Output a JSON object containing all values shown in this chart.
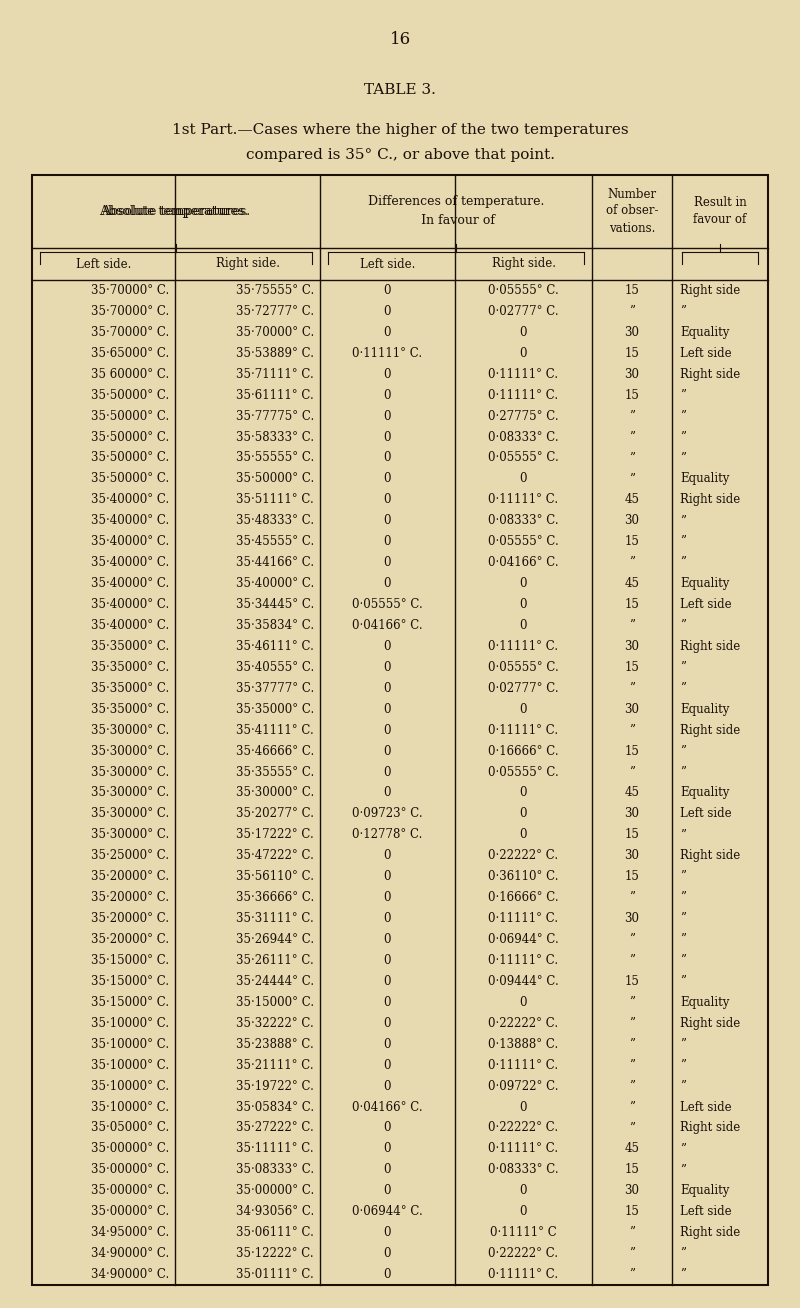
{
  "page_number": "16",
  "table_title": "Table 3.",
  "subtitle_line1": "1st Part.—Cases where the higher of the two temperatures",
  "subtitle_line2": "compared is 35° C., or above that point.",
  "bg_color": "#e8dab0",
  "text_color": "#1a1008",
  "rows": [
    [
      "35·70000° C.",
      "35·75555° C.",
      "0",
      "0·05555° C.",
      "15",
      "Right side"
    ],
    [
      "35·70000° C.",
      "35·72777° C.",
      "0",
      "0·02777° C.",
      "”",
      "”"
    ],
    [
      "35·70000° C.",
      "35·70000° C.",
      "0",
      "0",
      "30",
      "Equality"
    ],
    [
      "35·65000° C.",
      "35·53889° C.",
      "0·11111° C.",
      "0",
      "15",
      "Left side"
    ],
    [
      "35 60000° C.",
      "35·71111° C.",
      "0",
      "0·11111° C.",
      "30",
      "Right side"
    ],
    [
      "35·50000° C.",
      "35·61111° C.",
      "0",
      "0·11111° C.",
      "15",
      "”"
    ],
    [
      "35·50000° C.",
      "35·77775° C.",
      "0",
      "0·27775° C.",
      "”",
      "”"
    ],
    [
      "35·50000° C.",
      "35·58333° C.",
      "0",
      "0·08333° C.",
      "”",
      "”"
    ],
    [
      "35·50000° C.",
      "35·55555° C.",
      "0",
      "0·05555° C.",
      "”",
      "”"
    ],
    [
      "35·50000° C.",
      "35·50000° C.",
      "0",
      "0",
      "”",
      "Equality"
    ],
    [
      "35·40000° C.",
      "35·51111° C.",
      "0",
      "0·11111° C.",
      "45",
      "Right side"
    ],
    [
      "35·40000° C.",
      "35·48333° C.",
      "0",
      "0·08333° C.",
      "30",
      "”"
    ],
    [
      "35·40000° C.",
      "35·45555° C.",
      "0",
      "0·05555° C.",
      "15",
      "”"
    ],
    [
      "35·40000° C.",
      "35·44166° C.",
      "0",
      "0·04166° C.",
      "”",
      "”"
    ],
    [
      "35·40000° C.",
      "35·40000° C.",
      "0",
      "0",
      "45",
      "Equality"
    ],
    [
      "35·40000° C.",
      "35·34445° C.",
      "0·05555° C.",
      "0",
      "15",
      "Left side"
    ],
    [
      "35·40000° C.",
      "35·35834° C.",
      "0·04166° C.",
      "0",
      "”",
      "”"
    ],
    [
      "35·35000° C.",
      "35·46111° C.",
      "0",
      "0·11111° C.",
      "30",
      "Right side"
    ],
    [
      "35·35000° C.",
      "35·40555° C.",
      "0",
      "0·05555° C.",
      "15",
      "”"
    ],
    [
      "35·35000° C.",
      "35·37777° C.",
      "0",
      "0·02777° C.",
      "”",
      "”"
    ],
    [
      "35·35000° C.",
      "35·35000° C.",
      "0",
      "0",
      "30",
      "Equality"
    ],
    [
      "35·30000° C.",
      "35·41111° C.",
      "0",
      "0·11111° C.",
      "”",
      "Right side"
    ],
    [
      "35·30000° C.",
      "35·46666° C.",
      "0",
      "0·16666° C.",
      "15",
      "”"
    ],
    [
      "35·30000° C.",
      "35·35555° C.",
      "0",
      "0·05555° C.",
      "”",
      "”"
    ],
    [
      "35·30000° C.",
      "35·30000° C.",
      "0",
      "0",
      "45",
      "Equality"
    ],
    [
      "35·30000° C.",
      "35·20277° C.",
      "0·09723° C.",
      "0",
      "30",
      "Left side"
    ],
    [
      "35·30000° C.",
      "35·17222° C.",
      "0·12778° C.",
      "0",
      "15",
      "”"
    ],
    [
      "35·25000° C.",
      "35·47222° C.",
      "0",
      "0·22222° C.",
      "30",
      "Right side"
    ],
    [
      "35·20000° C.",
      "35·56110° C.",
      "0",
      "0·36110° C.",
      "15",
      "”"
    ],
    [
      "35·20000° C.",
      "35·36666° C.",
      "0",
      "0·16666° C.",
      "”",
      "”"
    ],
    [
      "35·20000° C.",
      "35·31111° C.",
      "0",
      "0·11111° C.",
      "30",
      "”"
    ],
    [
      "35·20000° C.",
      "35·26944° C.",
      "0",
      "0·06944° C.",
      "”",
      "”"
    ],
    [
      "35·15000° C.",
      "35·26111° C.",
      "0",
      "0·11111° C.",
      "”",
      "”"
    ],
    [
      "35·15000° C.",
      "35·24444° C.",
      "0",
      "0·09444° C.",
      "15",
      "”"
    ],
    [
      "35·15000° C.",
      "35·15000° C.",
      "0",
      "0",
      "”",
      "Equality"
    ],
    [
      "35·10000° C.",
      "35·32222° C.",
      "0",
      "0·22222° C.",
      "”",
      "Right side"
    ],
    [
      "35·10000° C.",
      "35·23888° C.",
      "0",
      "0·13888° C.",
      "”",
      "”"
    ],
    [
      "35·10000° C.",
      "35·21111° C.",
      "0",
      "0·11111° C.",
      "”",
      "”"
    ],
    [
      "35·10000° C.",
      "35·19722° C.",
      "0",
      "0·09722° C.",
      "”",
      "”"
    ],
    [
      "35·10000° C.",
      "35·05834° C.",
      "0·04166° C.",
      "0",
      "”",
      "Left side"
    ],
    [
      "35·05000° C.",
      "35·27222° C.",
      "0",
      "0·22222° C.",
      "”",
      "Right side"
    ],
    [
      "35·00000° C.",
      "35·11111° C.",
      "0",
      "0·11111° C.",
      "45",
      "”"
    ],
    [
      "35·00000° C.",
      "35·08333° C.",
      "0",
      "0·08333° C.",
      "15",
      "”"
    ],
    [
      "35·00000° C.",
      "35·00000° C.",
      "0",
      "0",
      "30",
      "Equality"
    ],
    [
      "35·00000° C.",
      "34·93056° C.",
      "0·06944° C.",
      "0",
      "15",
      "Left side"
    ],
    [
      "34·95000° C.",
      "35·06111° C.",
      "0",
      "0·11111° C",
      "”",
      "Right side"
    ],
    [
      "34·90000° C.",
      "35·12222° C.",
      "0",
      "0·22222° C.",
      "”",
      "”"
    ],
    [
      "34·90000° C.",
      "35·01111° C.",
      "0",
      "0·11111° C.",
      "”",
      "”"
    ]
  ],
  "font_size": 8.5,
  "header_font_size": 9.0,
  "sub_header_font_size": 8.5
}
